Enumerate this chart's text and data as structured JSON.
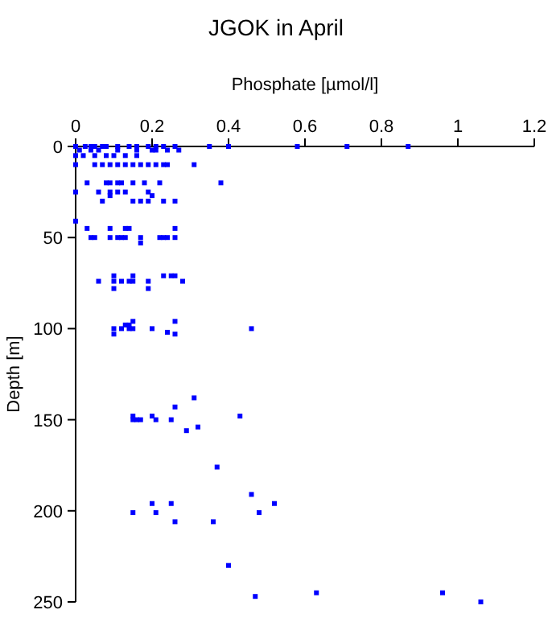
{
  "chart_data": {
    "type": "scatter",
    "title": "JGOK in April",
    "xlabel": "Phosphate [µmol/l]",
    "ylabel": "Depth [m]",
    "xlim": [
      0,
      1.2
    ],
    "xticks": [
      0,
      0.2,
      0.4,
      0.6,
      0.8,
      1,
      1.2
    ],
    "ylim": [
      250,
      0
    ],
    "yticks": [
      0,
      50,
      100,
      150,
      200,
      250
    ],
    "grid": false,
    "marker": "square",
    "series": [
      {
        "color": "#0000ff",
        "x": [
          0,
          0.025,
          0.04,
          0.05,
          0.07,
          0.08,
          0.11,
          0.14,
          0.16,
          0.19,
          0.21,
          0.23,
          0.26,
          0.35,
          0.4,
          0.58,
          0.71,
          0.87,
          0.01,
          0.04,
          0.06,
          0.11,
          0.16,
          0.2,
          0.21,
          0.24,
          0.27,
          0,
          0.02,
          0.05,
          0.08,
          0.1,
          0.13,
          0.16,
          0,
          0.05,
          0.07,
          0.09,
          0.11,
          0.13,
          0.15,
          0.17,
          0.19,
          0.21,
          0.23,
          0.24,
          0.31,
          0.03,
          0.08,
          0.09,
          0.11,
          0.12,
          0.15,
          0.18,
          0.22,
          0.38,
          0,
          0.06,
          0.09,
          0.11,
          0.13,
          0.19,
          0.09,
          0.2,
          0.07,
          0.15,
          0.17,
          0.19,
          0.23,
          0.26,
          0,
          0.03,
          0.09,
          0.13,
          0.14,
          0.26,
          0.04,
          0.05,
          0.09,
          0.11,
          0.12,
          0.13,
          0.17,
          0.22,
          0.23,
          0.24,
          0.26,
          0.17,
          0.1,
          0.15,
          0.23,
          0.25,
          0.26,
          0.06,
          0.1,
          0.12,
          0.14,
          0.15,
          0.19,
          0.28,
          0.1,
          0.19,
          0.15,
          0.26,
          0.13,
          0.14,
          0.1,
          0.12,
          0.14,
          0.15,
          0.2,
          0.46,
          0.24,
          0.1,
          0.26,
          0.31,
          0.26,
          0.15,
          0.2,
          0.43,
          0.15,
          0.16,
          0.17,
          0.21,
          0.25,
          0.32,
          0.29,
          0.37,
          0.46,
          0.2,
          0.25,
          0.52,
          0.15,
          0.21,
          0.48,
          0.26,
          0.36,
          0.4,
          0.63,
          0.96,
          0.47,
          1.06
        ],
        "values": [
          0,
          0,
          0,
          0,
          0,
          0,
          0,
          0,
          0,
          0,
          0,
          0,
          0,
          0,
          0,
          0,
          0,
          0,
          2,
          2,
          2,
          2,
          2,
          2,
          2,
          2,
          2,
          5,
          5,
          5,
          5,
          5,
          5,
          5,
          10,
          10,
          10,
          10,
          10,
          10,
          10,
          10,
          10,
          10,
          10,
          10,
          10,
          20,
          20,
          20,
          20,
          20,
          20,
          20,
          20,
          20,
          25,
          25,
          25,
          25,
          25,
          25,
          27,
          27,
          30,
          30,
          30,
          30,
          30,
          30,
          41,
          45,
          45,
          45,
          45,
          45,
          50,
          50,
          50,
          50,
          50,
          50,
          50,
          50,
          50,
          50,
          50,
          53,
          71,
          71,
          71,
          71,
          71,
          74,
          74,
          74,
          74,
          74,
          74,
          74,
          78,
          78,
          96,
          96,
          98,
          98,
          100,
          100,
          100,
          100,
          100,
          100,
          102,
          103,
          103,
          138,
          143,
          148,
          148,
          148,
          150,
          150,
          150,
          150,
          150,
          154,
          156,
          176,
          191,
          196,
          196,
          196,
          201,
          201,
          201,
          206,
          206,
          230,
          245,
          245,
          247,
          250
        ]
      }
    ]
  }
}
